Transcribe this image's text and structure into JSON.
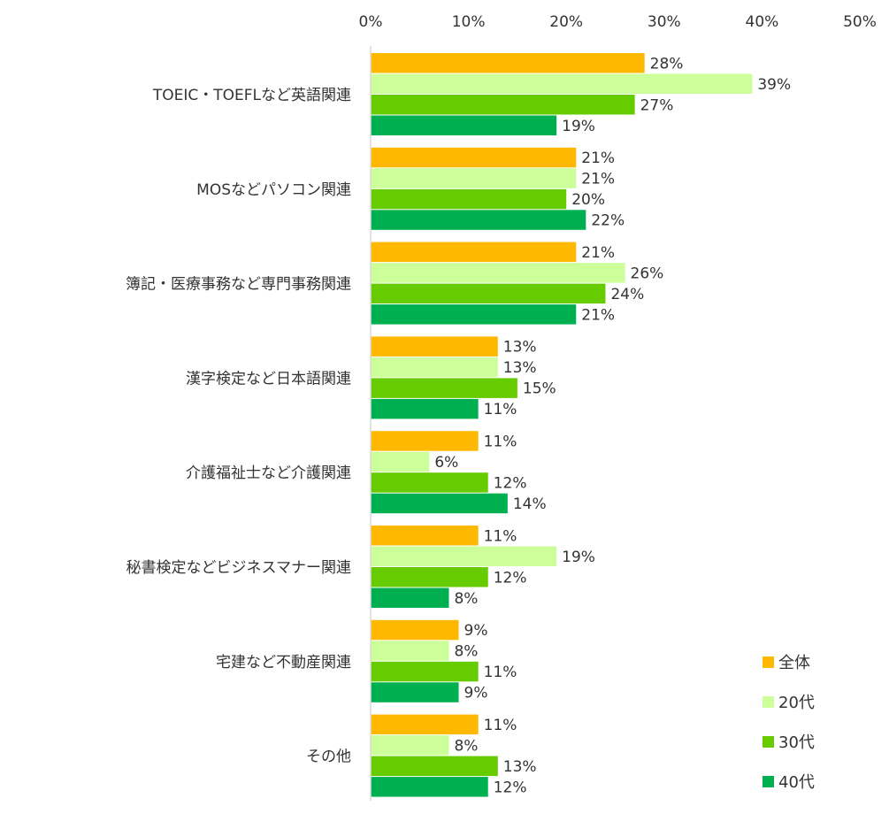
{
  "chart_data": {
    "type": "bar",
    "orientation": "horizontal",
    "categories": [
      "TOEIC・TOEFLなど英語関連",
      "MOSなどパソコン関連",
      "簿記・医療事務など専門事務関連",
      "漢字検定など日本語関連",
      "介護福祉士など介護関連",
      "秘書検定などビジネスマナー関連",
      "宅建など不動産関連",
      "その他"
    ],
    "series": [
      {
        "name": "全体",
        "color": "#FFB800",
        "values": [
          28,
          21,
          21,
          13,
          11,
          11,
          9,
          11
        ]
      },
      {
        "name": "20代",
        "color": "#CCFF99",
        "values": [
          39,
          21,
          26,
          13,
          6,
          19,
          8,
          8
        ]
      },
      {
        "name": "30代",
        "color": "#66CC00",
        "values": [
          27,
          20,
          24,
          15,
          12,
          12,
          11,
          13
        ]
      },
      {
        "name": "40代",
        "color": "#00B050",
        "values": [
          19,
          22,
          21,
          11,
          14,
          8,
          9,
          12
        ]
      }
    ],
    "x_ticks": [
      "0%",
      "10%",
      "20%",
      "30%",
      "40%",
      "50%"
    ],
    "xlim": [
      0,
      50
    ],
    "value_suffix": "%",
    "grid": false,
    "legend_position": "bottom-right",
    "axis_color": "#D9D9D9"
  }
}
